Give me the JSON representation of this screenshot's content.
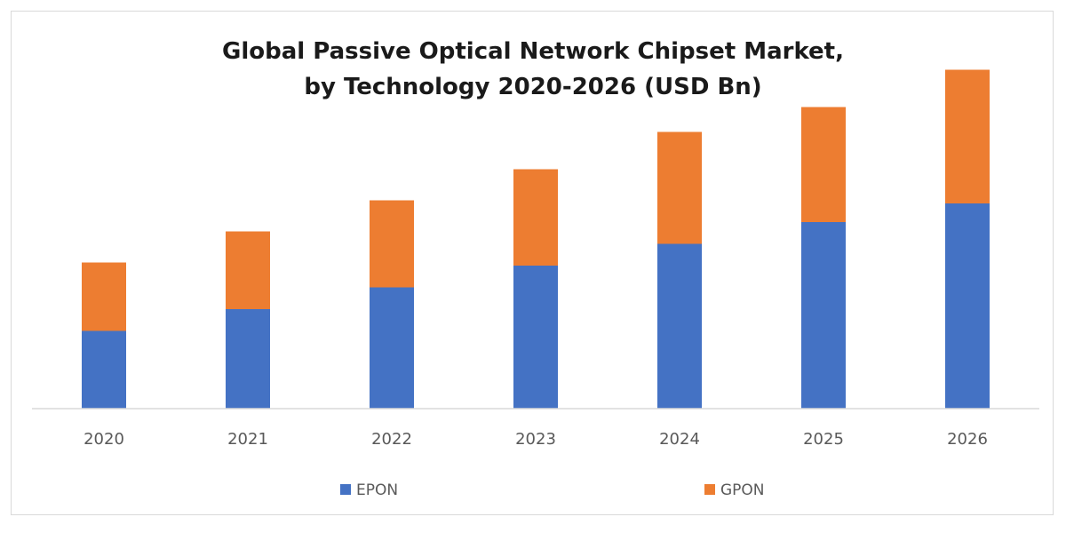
{
  "chart_data": {
    "type": "bar",
    "stacked": true,
    "title_lines": [
      "Global Passive Optical Network Chipset Market,",
      "by Technology 2020-2026 (USD Bn)"
    ],
    "categories": [
      "2020",
      "2021",
      "2022",
      "2023",
      "2024",
      "2025",
      "2026"
    ],
    "series": [
      {
        "name": "EPON",
        "color": "#4472c4",
        "values": [
          2.5,
          3.2,
          3.9,
          4.6,
          5.3,
          6.0,
          6.6
        ]
      },
      {
        "name": "GPON",
        "color": "#ed7d31",
        "values": [
          2.2,
          2.5,
          2.8,
          3.1,
          3.6,
          3.7,
          4.3
        ]
      }
    ],
    "ylim": [
      0,
      11
    ],
    "grid": false,
    "legend_position": "bottom"
  }
}
